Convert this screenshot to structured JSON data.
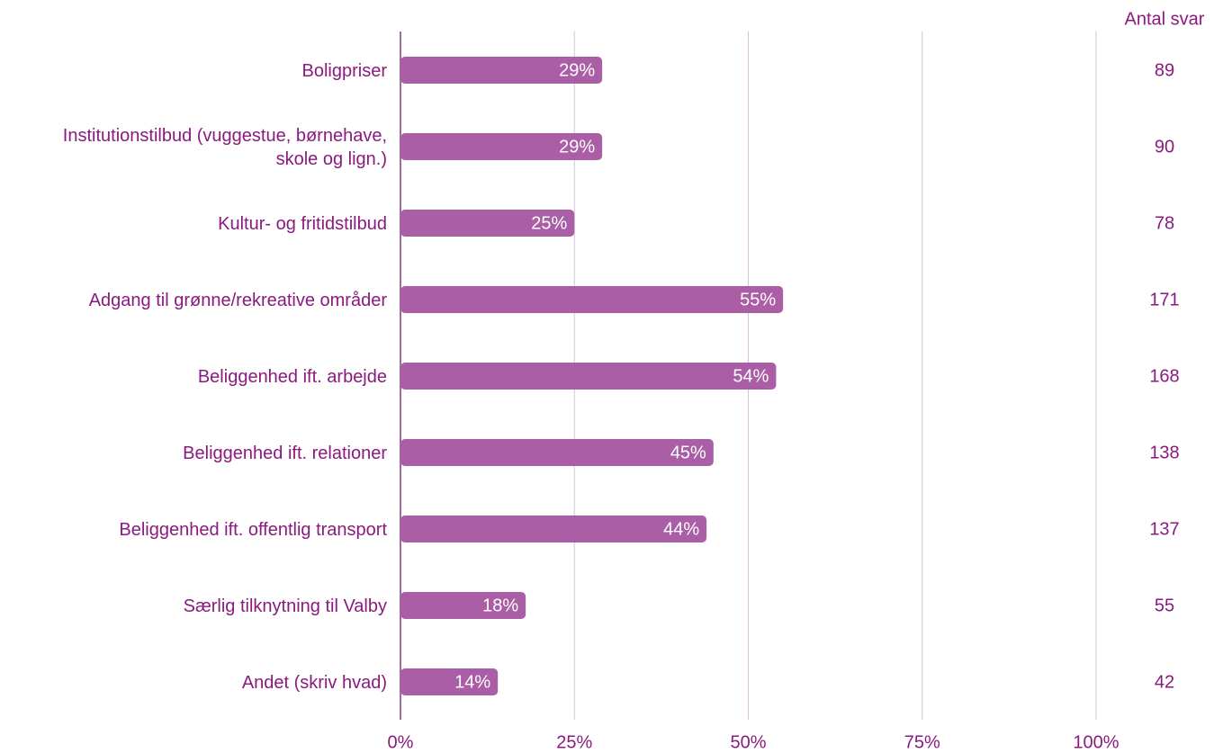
{
  "chart_data": {
    "type": "barh",
    "categories": [
      "Boligpriser",
      "Institutionstilbud (vuggestue, børnehave,\nskole og lign.)",
      "Kultur- og fritidstilbud",
      "Adgang til grønne/rekreative områder",
      "Beliggenhed ift. arbejde",
      "Beliggenhed ift. relationer",
      "Beliggenhed ift. offentlig transport",
      "Særlig tilknytning til Valby",
      "Andet (skriv hvad)"
    ],
    "values": [
      29,
      29,
      25,
      55,
      54,
      45,
      44,
      18,
      14
    ],
    "value_labels": [
      "29%",
      "29%",
      "25%",
      "55%",
      "54%",
      "45%",
      "44%",
      "18%",
      "14%"
    ],
    "color": "#a95ea5",
    "xlim": [
      0,
      100
    ],
    "xticks": [
      {
        "value": 0,
        "label": "0%"
      },
      {
        "value": 25,
        "label": "25%"
      },
      {
        "value": 50,
        "label": "50%"
      },
      {
        "value": 75,
        "label": "75%"
      },
      {
        "value": 100,
        "label": "100%"
      }
    ],
    "grid": true,
    "counts": {
      "title": "Antal svar",
      "values": [
        89,
        90,
        78,
        171,
        168,
        138,
        137,
        55,
        42
      ]
    }
  }
}
